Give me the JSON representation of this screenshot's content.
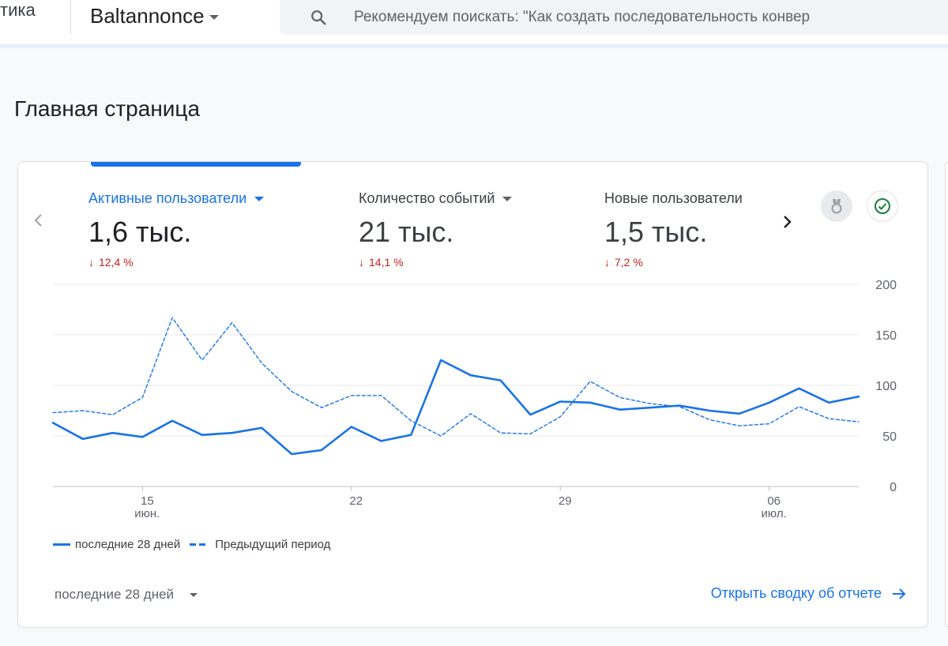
{
  "header": {
    "app_name_fragment": "тика",
    "property_name": "Baltannonce",
    "search_placeholder": "Рекомендуем поискать: \"Как создать последовательность конвер"
  },
  "page": {
    "title": "Главная страница"
  },
  "card": {
    "metrics": [
      {
        "label": "Активные пользователи",
        "value": "1,6 тыс.",
        "change": "12,4 %",
        "active": true
      },
      {
        "label": "Количество событий",
        "value": "21 тыс.",
        "change": "14,1 %",
        "active": false
      },
      {
        "label": "Новые пользователи",
        "value": "1,5 тыс.",
        "change": "7,2 %",
        "active": false
      }
    ],
    "legend": {
      "current": "последние 28 дней",
      "previous": "Предыдущий период"
    },
    "date_range": "последние 28 дней",
    "report_link": "Открыть сводку об отчете"
  },
  "colors": {
    "accent": "#1a73e8",
    "negative": "#c5221f"
  },
  "icons": {
    "search": "search-icon",
    "prev": "chevron-left-icon",
    "next": "chevron-right-icon",
    "insights": "insights-badge-icon",
    "check": "check-circle-icon",
    "arrow": "arrow-right-icon"
  },
  "chart_data": {
    "type": "line",
    "x": [
      "12",
      "13",
      "14",
      "15",
      "16",
      "17",
      "18",
      "19",
      "20",
      "21",
      "22",
      "23",
      "24",
      "25",
      "26",
      "27",
      "28",
      "29",
      "30",
      "01",
      "02",
      "03",
      "04",
      "05",
      "06",
      "07",
      "08",
      "09"
    ],
    "x_tick_labels": [
      {
        "at": "15",
        "line1": "15",
        "line2": "июн."
      },
      {
        "at": "22",
        "line1": "22",
        "line2": ""
      },
      {
        "at": "29",
        "line1": "29",
        "line2": ""
      },
      {
        "at": "06",
        "line1": "06",
        "line2": "июл."
      }
    ],
    "y_ticks": [
      "0",
      "50",
      "100",
      "150",
      "200"
    ],
    "ylim": [
      0,
      200
    ],
    "series": [
      {
        "name": "последние 28 дней",
        "style": "solid",
        "values": [
          63,
          47,
          53,
          49,
          65,
          51,
          53,
          58,
          32,
          36,
          59,
          45,
          51,
          125,
          110,
          105,
          71,
          84,
          83,
          76,
          78,
          80,
          75,
          72,
          83,
          97,
          83,
          89
        ]
      },
      {
        "name": "Предыдущий период",
        "style": "dashed",
        "values": [
          73,
          75,
          71,
          88,
          167,
          125,
          162,
          122,
          94,
          78,
          90,
          90,
          65,
          50,
          72,
          53,
          52,
          69,
          104,
          88,
          82,
          79,
          66,
          60,
          62,
          79,
          67,
          64
        ]
      }
    ],
    "grid": true,
    "legend_position": "bottom-left"
  }
}
